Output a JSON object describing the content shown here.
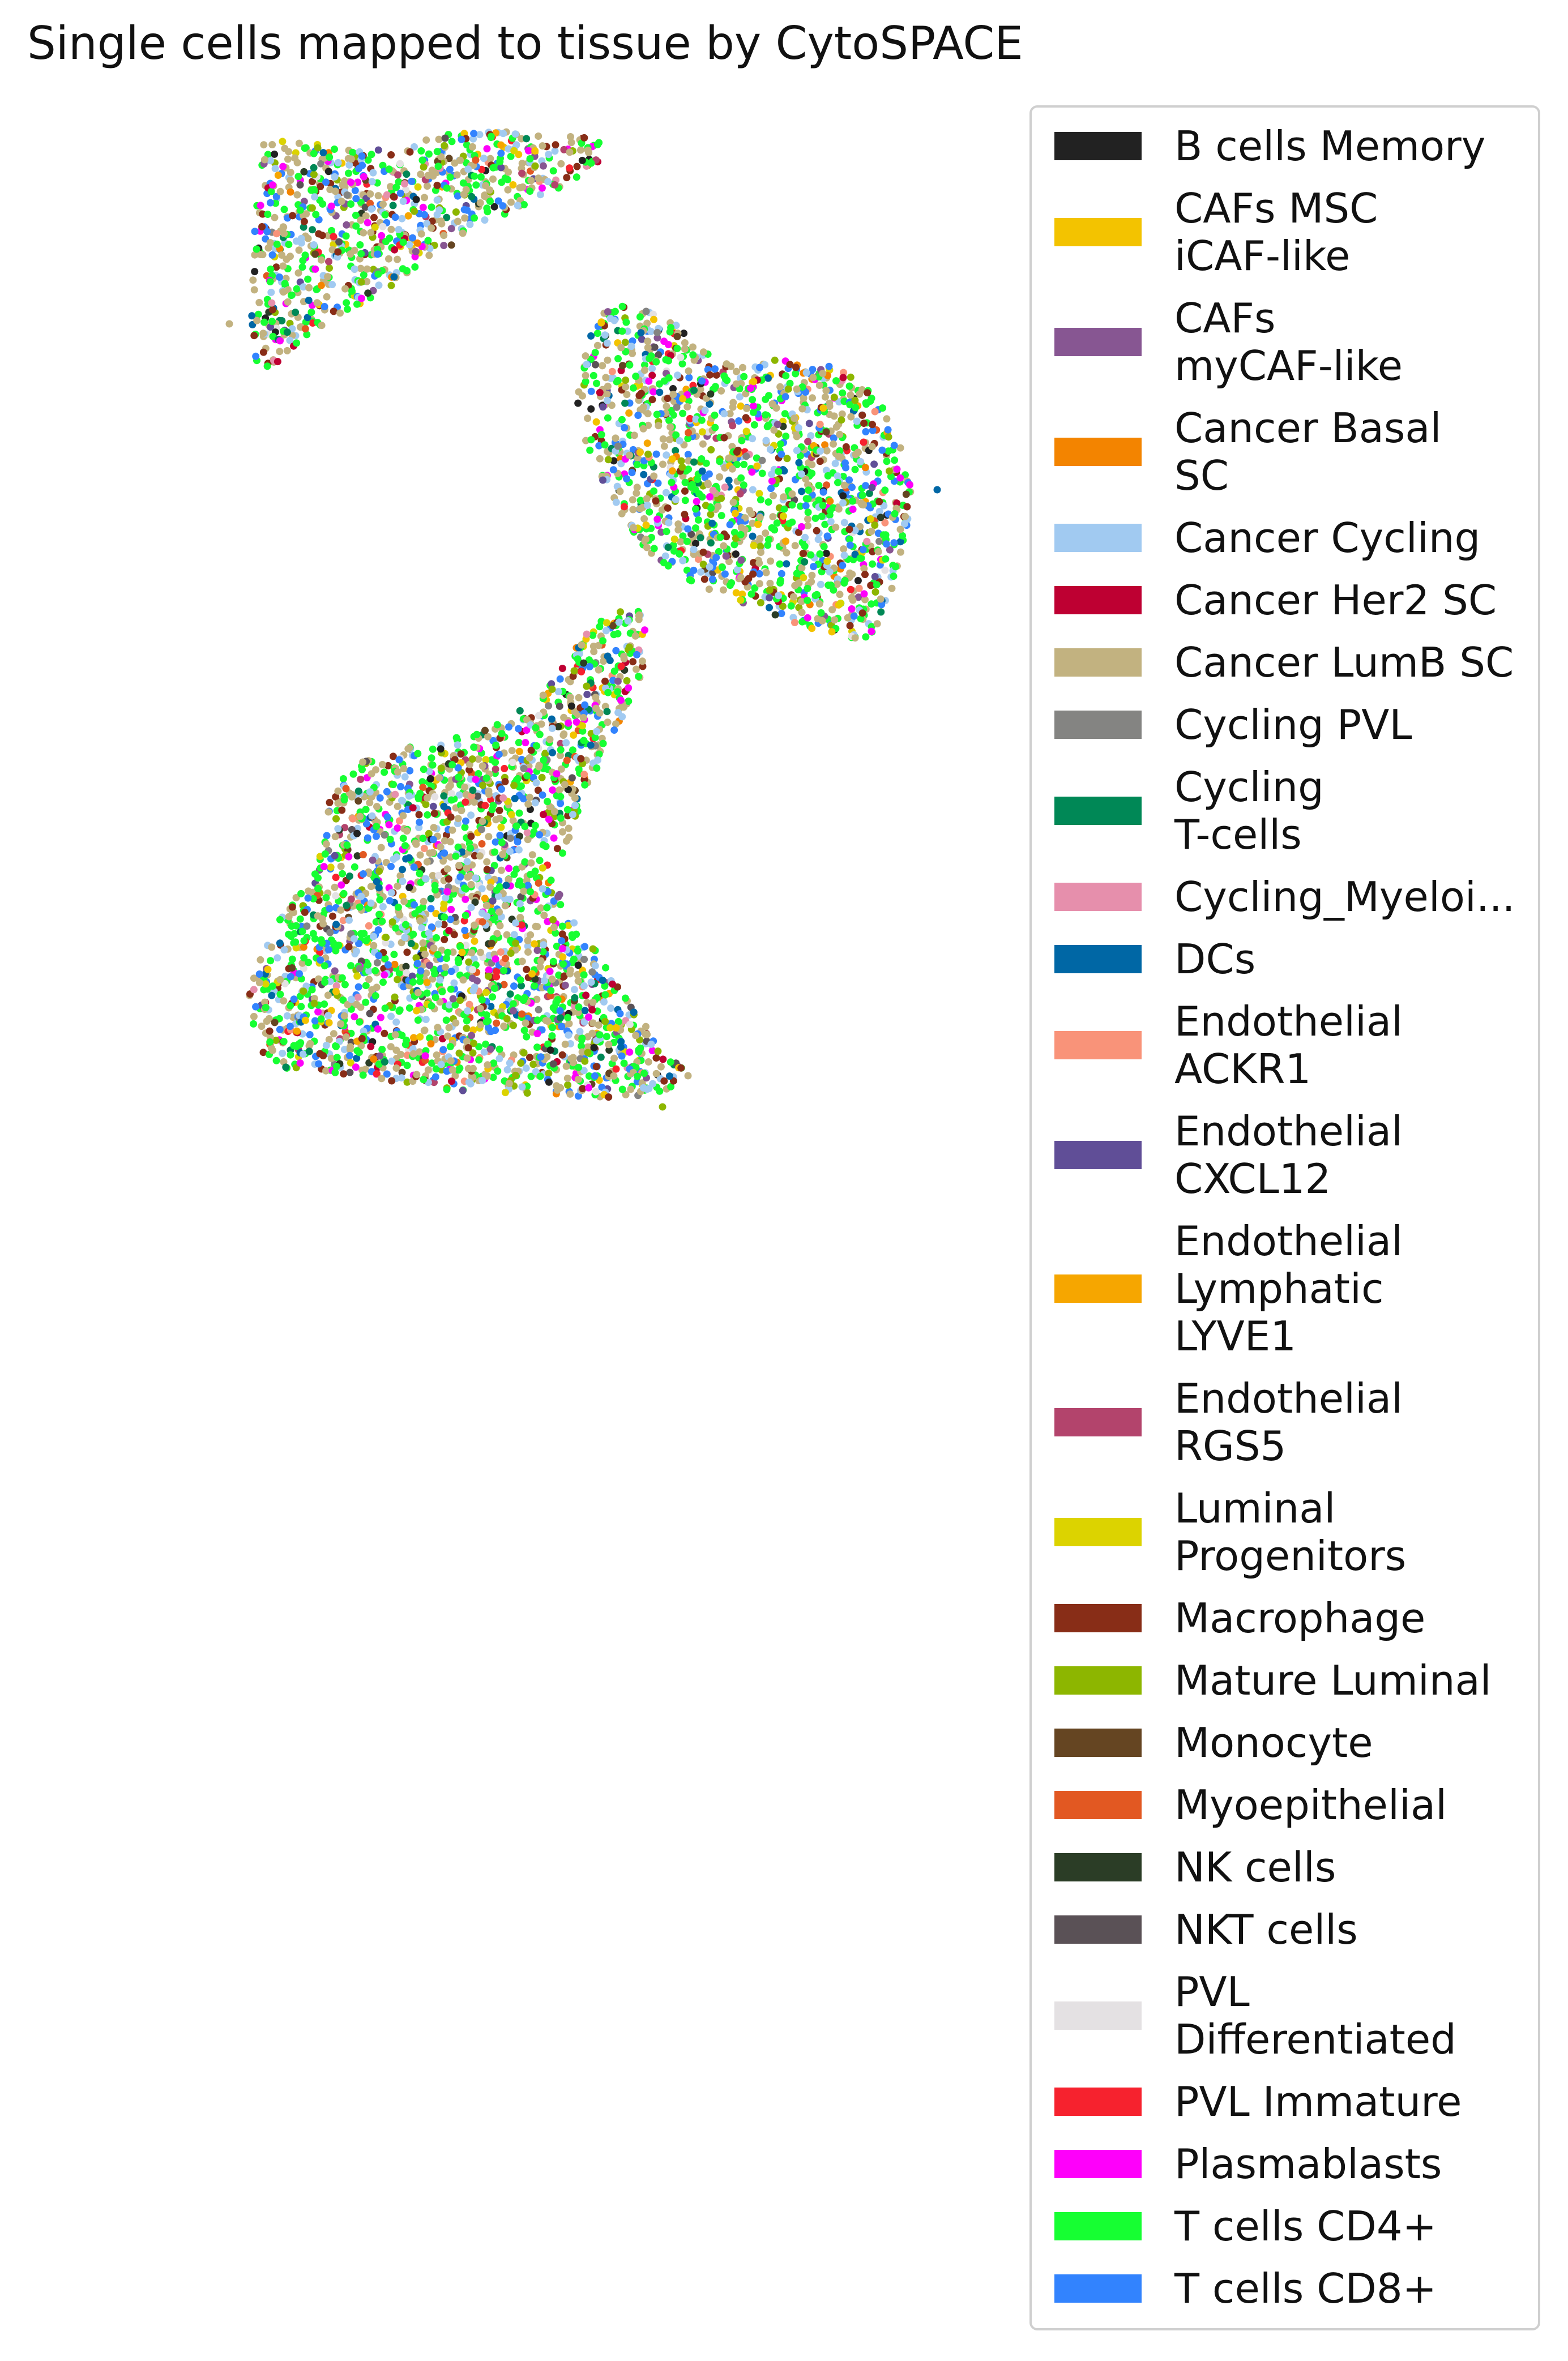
{
  "chart_data": {
    "type": "scatter",
    "title": "Single cells mapped to tissue by CytoSPACE",
    "xlabel": "",
    "ylabel": "",
    "axes_visible": false,
    "grid": false,
    "legend_position": "right",
    "categories": [
      {
        "name": "B cells Memory",
        "color": "#222222",
        "w": 1
      },
      {
        "name": "CAFs MSC iCAF-like",
        "color": "#f3c300",
        "w": 2
      },
      {
        "name": "CAFs myCAF-like",
        "color": "#875692",
        "w": 2
      },
      {
        "name": "Cancer Basal SC",
        "color": "#f38400",
        "w": 1
      },
      {
        "name": "Cancer Cycling",
        "color": "#a1caf1",
        "w": 12
      },
      {
        "name": "Cancer Her2 SC",
        "color": "#be0032",
        "w": 1
      },
      {
        "name": "Cancer LumB SC",
        "color": "#c2b280",
        "w": 28
      },
      {
        "name": "Cycling PVL",
        "color": "#848482",
        "w": 1
      },
      {
        "name": "Cycling T-cells",
        "color": "#008856",
        "w": 2
      },
      {
        "name": "Cycling_Myeloid",
        "color": "#e68fac",
        "w": 1
      },
      {
        "name": "DCs",
        "color": "#0067a5",
        "w": 2
      },
      {
        "name": "Endothelial ACKR1",
        "color": "#f99379",
        "w": 1
      },
      {
        "name": "Endothelial CXCL12",
        "color": "#604e97",
        "w": 1
      },
      {
        "name": "Endothelial Lymphatic LYVE1",
        "color": "#f6a600",
        "w": 1
      },
      {
        "name": "Endothelial RGS5",
        "color": "#b3446c",
        "w": 1
      },
      {
        "name": "Luminal Progenitors",
        "color": "#dcd300",
        "w": 2
      },
      {
        "name": "Macrophage",
        "color": "#882d17",
        "w": 6
      },
      {
        "name": "Mature Luminal",
        "color": "#8db600",
        "w": 5
      },
      {
        "name": "Monocyte",
        "color": "#654522",
        "w": 1
      },
      {
        "name": "Myoepithelial",
        "color": "#e25822",
        "w": 1
      },
      {
        "name": "NK cells",
        "color": "#2b3d26",
        "w": 1
      },
      {
        "name": "NKT cells",
        "color": "#5a5156",
        "w": 1
      },
      {
        "name": "PVL Differentiated",
        "color": "#e4e1e3",
        "w": 1
      },
      {
        "name": "PVL Immature",
        "color": "#f6222e",
        "w": 1
      },
      {
        "name": "Plasmablasts",
        "color": "#fe00fa",
        "w": 4
      },
      {
        "name": "T cells CD4+",
        "color": "#16ff32",
        "w": 30
      },
      {
        "name": "T cells CD8+",
        "color": "#3283fe",
        "w": 10
      }
    ],
    "legend_labels": [
      "B cells Memory",
      "CAFs MSC\niCAF-like",
      "CAFs\nmyCAF-like",
      "Cancer Basal\nSC",
      "Cancer Cycling",
      "Cancer Her2 SC",
      "Cancer LumB SC",
      "Cycling PVL",
      "Cycling\nT-cells",
      "Cycling_Myeloi...",
      "DCs",
      "Endothelial\nACKR1",
      "Endothelial\nCXCL12",
      "Endothelial\nLymphatic\nLYVE1",
      "Endothelial\nRGS5",
      "Luminal\nProgenitors",
      "Macrophage",
      "Mature Luminal",
      "Monocyte",
      "Myoepithelial",
      "NK cells",
      "NKT cells",
      "PVL\nDifferentiated",
      "PVL Immature",
      "Plasmablasts",
      "T cells CD4+",
      "T cells CD8+"
    ]
  }
}
